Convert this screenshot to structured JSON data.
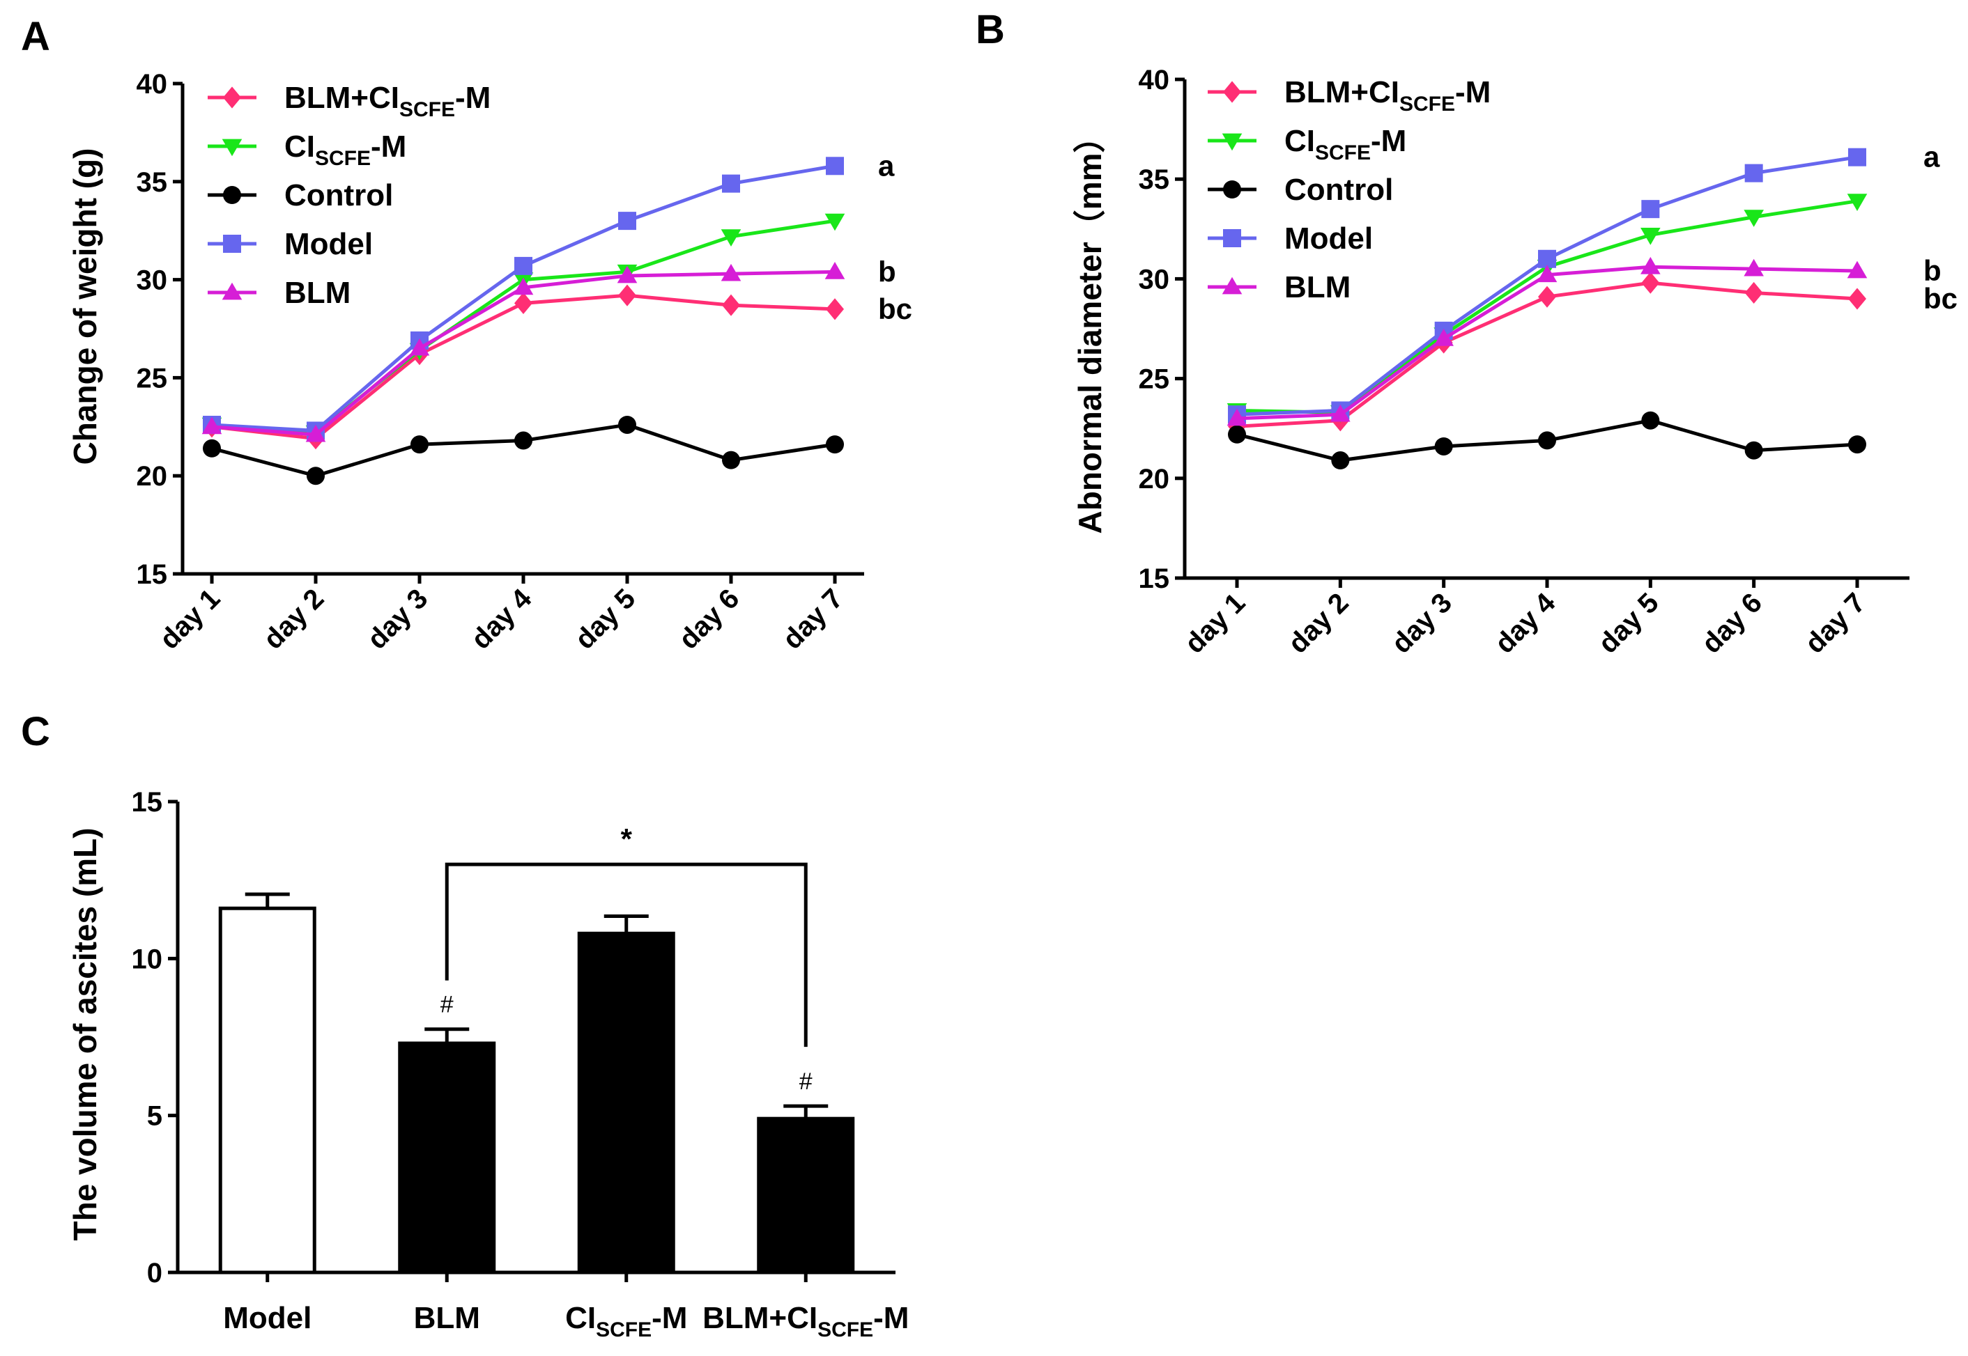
{
  "chart_data": [
    {
      "id": "A",
      "panel_label": "A",
      "type": "line",
      "ylabel": "Change of weight (g)",
      "ylim": [
        15,
        40
      ],
      "yticks": [
        "15",
        "20",
        "25",
        "30",
        "35",
        "40"
      ],
      "categories": [
        "day 1",
        "day 2",
        "day 3",
        "day 4",
        "day 5",
        "day 6",
        "day 7"
      ],
      "series": [
        {
          "name": "BLM+CI",
          "sub": "SCFE",
          "suffix": "-M",
          "color": "#ff2e74",
          "marker": "diamond",
          "values": [
            22.5,
            21.9,
            26.2,
            28.8,
            29.2,
            28.7,
            28.5
          ]
        },
        {
          "name": "CI",
          "sub": "SCFE",
          "suffix": "-M",
          "color": "#19e619",
          "marker": "triangle-down",
          "values": [
            22.6,
            22.2,
            26.4,
            30.0,
            30.4,
            32.2,
            33.0
          ]
        },
        {
          "name": "Control",
          "sub": "",
          "suffix": "",
          "color": "#000000",
          "marker": "circle",
          "values": [
            21.4,
            20.0,
            21.6,
            21.8,
            22.6,
            20.8,
            21.6
          ]
        },
        {
          "name": "Model",
          "sub": "",
          "suffix": "",
          "color": "#6666ee",
          "marker": "square",
          "values": [
            22.6,
            22.3,
            26.9,
            30.7,
            33.0,
            34.9,
            35.8
          ]
        },
        {
          "name": "BLM",
          "sub": "",
          "suffix": "",
          "color": "#d61ed6",
          "marker": "triangle-up",
          "values": [
            22.5,
            22.1,
            26.5,
            29.6,
            30.2,
            30.3,
            30.4
          ]
        }
      ],
      "end_labels": [
        {
          "text": "a",
          "value": 35.8
        },
        {
          "text": "b",
          "value": 30.4
        },
        {
          "text": "bc",
          "value": 28.5
        }
      ]
    },
    {
      "id": "B",
      "panel_label": "B",
      "type": "line",
      "ylabel": "Abnormal diameter（mm）",
      "ylim": [
        15,
        40
      ],
      "yticks": [
        "15",
        "20",
        "25",
        "30",
        "35",
        "40"
      ],
      "categories": [
        "day 1",
        "day 2",
        "day 3",
        "day 4",
        "day 5",
        "day 6",
        "day 7"
      ],
      "series": [
        {
          "name": "BLM+CI",
          "sub": "SCFE",
          "suffix": "-M",
          "color": "#ff2e74",
          "marker": "diamond",
          "values": [
            22.6,
            22.9,
            26.8,
            29.1,
            29.8,
            29.3,
            29.0
          ]
        },
        {
          "name": "CI",
          "sub": "SCFE",
          "suffix": "-M",
          "color": "#19e619",
          "marker": "triangle-down",
          "values": [
            23.4,
            23.3,
            27.2,
            30.6,
            32.2,
            33.1,
            33.9
          ]
        },
        {
          "name": "Control",
          "sub": "",
          "suffix": "",
          "color": "#000000",
          "marker": "circle",
          "values": [
            22.2,
            20.9,
            21.6,
            21.9,
            22.9,
            21.4,
            21.7
          ]
        },
        {
          "name": "Model",
          "sub": "",
          "suffix": "",
          "color": "#6666ee",
          "marker": "square",
          "values": [
            23.2,
            23.4,
            27.4,
            31.0,
            33.5,
            35.3,
            36.1
          ]
        },
        {
          "name": "BLM",
          "sub": "",
          "suffix": "",
          "color": "#d61ed6",
          "marker": "triangle-up",
          "values": [
            23.0,
            23.2,
            27.0,
            30.2,
            30.6,
            30.5,
            30.4
          ]
        }
      ],
      "end_labels": [
        {
          "text": "a",
          "value": 36.1
        },
        {
          "text": "b",
          "value": 30.4
        },
        {
          "text": "bc",
          "value": 29.0
        }
      ]
    },
    {
      "id": "C",
      "panel_label": "C",
      "type": "bar",
      "ylabel": "The volume of ascites (mL)",
      "ylim": [
        0,
        15
      ],
      "yticks": [
        "0",
        "5",
        "10",
        "15"
      ],
      "categories": [
        {
          "name": "Model",
          "sub": "",
          "suffix": ""
        },
        {
          "name": "BLM",
          "sub": "",
          "suffix": ""
        },
        {
          "name": "CI",
          "sub": "SCFE",
          "suffix": "-M"
        },
        {
          "name": "BLM+CI",
          "sub": "SCFE",
          "suffix": "-M"
        }
      ],
      "values": [
        11.6,
        7.3,
        10.8,
        4.9
      ],
      "errors": [
        0.45,
        0.45,
        0.55,
        0.4
      ],
      "fills": [
        "#ffffff",
        "#000000",
        "#000000",
        "#000000"
      ],
      "bar_marks": [
        "",
        "#",
        "",
        "#"
      ],
      "significance": {
        "from": 1,
        "to": 3,
        "label": "*",
        "level": 13.0
      }
    }
  ]
}
